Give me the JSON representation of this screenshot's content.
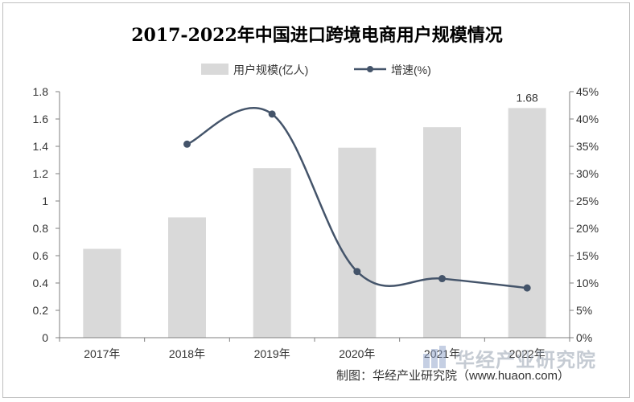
{
  "chart_data": {
    "type": "bar",
    "title": "2017-2022年中国进口跨境电商用户规模情况",
    "categories": [
      "2017年",
      "2018年",
      "2019年",
      "2020年",
      "2021年",
      "2022年"
    ],
    "series": [
      {
        "name": "用户规模(亿人)",
        "type": "bar",
        "axis": "left",
        "values": [
          0.65,
          0.88,
          1.24,
          1.39,
          1.54,
          1.68
        ],
        "data_labels": [
          null,
          null,
          null,
          null,
          null,
          "1.68"
        ]
      },
      {
        "name": "增速(%)",
        "type": "line",
        "axis": "right",
        "values": [
          null,
          35.4,
          40.9,
          12.1,
          10.8,
          9.1
        ]
      }
    ],
    "y_left": {
      "ticks": [
        "0",
        "0.2",
        "0.4",
        "0.6",
        "0.8",
        "1",
        "1.2",
        "1.4",
        "1.6",
        "1.8"
      ],
      "ylim": [
        0,
        1.8
      ]
    },
    "y_right": {
      "ticks": [
        "0%",
        "5%",
        "10%",
        "15%",
        "20%",
        "25%",
        "30%",
        "35%",
        "40%",
        "45%"
      ],
      "ylim": [
        0,
        45
      ]
    },
    "grid": false,
    "legend": "top-center",
    "colors": {
      "bar": "#d9d9d9",
      "line": "#44546a",
      "axis": "#7f7f7f"
    }
  },
  "source": "制图：华经产业研究院（www.huaon.com）",
  "watermark": "华经产业研究院"
}
